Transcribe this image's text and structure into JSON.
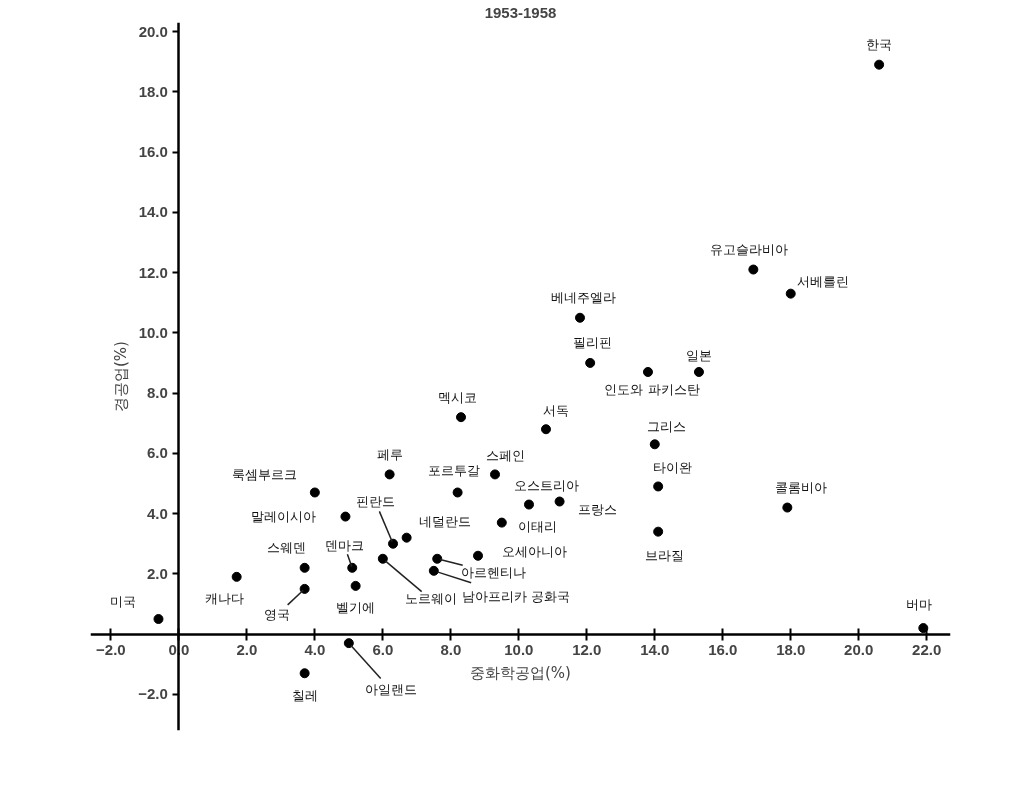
{
  "chart_data": {
    "type": "scatter",
    "title": "1953-1958",
    "xlabel": "중화학공업(%)",
    "ylabel": "경공업(%)",
    "x": [
      -0.6,
      1.7,
      3.7,
      3.7,
      4.0,
      4.9,
      5.1,
      5.2,
      3.7,
      5.0,
      6.2,
      6.3,
      6.7,
      6.0,
      8.2,
      8.3,
      7.6,
      7.5,
      8.8,
      9.5,
      9.3,
      10.3,
      11.2,
      10.8,
      11.8,
      12.1,
      13.8,
      15.3,
      14.0,
      14.1,
      14.1,
      16.9,
      18.0,
      17.9,
      20.6,
      21.9
    ],
    "series": [
      {
        "color": "#000000",
        "values": [
          0.5,
          1.9,
          2.2,
          1.5,
          4.7,
          3.9,
          2.2,
          1.6,
          -1.3,
          -0.3,
          5.3,
          3.0,
          3.2,
          2.5,
          4.7,
          7.2,
          2.5,
          2.1,
          2.6,
          3.7,
          5.3,
          4.3,
          4.4,
          6.8,
          10.5,
          9.0,
          8.7,
          8.7,
          6.3,
          4.9,
          3.4,
          12.1,
          11.3,
          4.2,
          18.9,
          0.2
        ]
      }
    ],
    "annotations": [
      {
        "text": "미국",
        "x": -0.6,
        "y": 0.5
      },
      {
        "text": "캐나다",
        "x": 1.7,
        "y": 1.9
      },
      {
        "text": "스웨덴",
        "x": 3.7,
        "y": 2.2
      },
      {
        "text": "영국",
        "x": 3.7,
        "y": 1.5
      },
      {
        "text": "룩셈부르크",
        "x": 4.0,
        "y": 4.7
      },
      {
        "text": "말레이시아",
        "x": 4.9,
        "y": 3.9
      },
      {
        "text": "덴마크",
        "x": 5.1,
        "y": 2.2
      },
      {
        "text": "벨기에",
        "x": 5.2,
        "y": 1.6
      },
      {
        "text": "칠레",
        "x": 3.7,
        "y": -1.3
      },
      {
        "text": "아일랜드",
        "x": 5.0,
        "y": -0.3
      },
      {
        "text": "페루",
        "x": 6.2,
        "y": 5.3
      },
      {
        "text": "핀란드",
        "x": 6.3,
        "y": 3.0
      },
      {
        "text": "네덜란드",
        "x": 6.7,
        "y": 3.2
      },
      {
        "text": "노르웨이",
        "x": 6.0,
        "y": 2.5
      },
      {
        "text": "포르투갈",
        "x": 8.2,
        "y": 4.7
      },
      {
        "text": "멕시코",
        "x": 8.3,
        "y": 7.2
      },
      {
        "text": "아르헨티나",
        "x": 7.6,
        "y": 2.5
      },
      {
        "text": "남아프리카 공화국",
        "x": 7.5,
        "y": 2.1
      },
      {
        "text": "오세아니아",
        "x": 8.8,
        "y": 2.6
      },
      {
        "text": "이태리",
        "x": 9.5,
        "y": 3.7
      },
      {
        "text": "스페인",
        "x": 9.3,
        "y": 5.3
      },
      {
        "text": "오스트리아",
        "x": 10.3,
        "y": 4.3
      },
      {
        "text": "프랑스",
        "x": 11.2,
        "y": 4.4
      },
      {
        "text": "서독",
        "x": 10.8,
        "y": 6.8
      },
      {
        "text": "베네주엘라",
        "x": 11.8,
        "y": 10.5
      },
      {
        "text": "필리핀",
        "x": 12.1,
        "y": 9.0
      },
      {
        "text": "인도와 파키스탄",
        "x": 13.8,
        "y": 8.7
      },
      {
        "text": "일본",
        "x": 15.3,
        "y": 8.7
      },
      {
        "text": "그리스",
        "x": 14.0,
        "y": 6.3
      },
      {
        "text": "타이완",
        "x": 14.1,
        "y": 4.9
      },
      {
        "text": "브라질",
        "x": 14.1,
        "y": 3.4
      },
      {
        "text": "유고슬라비아",
        "x": 16.9,
        "y": 12.1
      },
      {
        "text": "서베를린",
        "x": 18.0,
        "y": 11.3
      },
      {
        "text": "콜롬비아",
        "x": 17.9,
        "y": 4.2
      },
      {
        "text": "한국",
        "x": 20.6,
        "y": 18.9
      },
      {
        "text": "버마",
        "x": 21.9,
        "y": 0.2
      }
    ],
    "xlim": [
      -2.6,
      22.7
    ],
    "ylim": [
      -3.2,
      20.3
    ],
    "xticks": [
      {
        "value": -2,
        "label": "−2.0"
      },
      {
        "value": 0,
        "label": "0.0"
      },
      {
        "value": 2,
        "label": "2.0"
      },
      {
        "value": 4,
        "label": "4.0"
      },
      {
        "value": 6,
        "label": "6.0"
      },
      {
        "value": 8,
        "label": "8.0"
      },
      {
        "value": 10,
        "label": "10.0"
      },
      {
        "value": 12,
        "label": "12.0"
      },
      {
        "value": 14,
        "label": "14.0"
      },
      {
        "value": 16,
        "label": "16.0"
      },
      {
        "value": 18,
        "label": "18.0"
      },
      {
        "value": 20,
        "label": "20.0"
      },
      {
        "value": 22,
        "label": "22.0"
      }
    ],
    "yticks": [
      {
        "value": -2,
        "label": "−2.0"
      },
      {
        "value": 2,
        "label": "2.0"
      },
      {
        "value": 4,
        "label": "4.0"
      },
      {
        "value": 6,
        "label": "6.0"
      },
      {
        "value": 8,
        "label": "8.0"
      },
      {
        "value": 10,
        "label": "10.0"
      },
      {
        "value": 12,
        "label": "12.0"
      },
      {
        "value": 14,
        "label": "14.0"
      },
      {
        "value": 16,
        "label": "16.0"
      },
      {
        "value": 18,
        "label": "18.0"
      },
      {
        "value": 20,
        "label": "20.0"
      }
    ],
    "grid": false,
    "marker": "circle"
  }
}
